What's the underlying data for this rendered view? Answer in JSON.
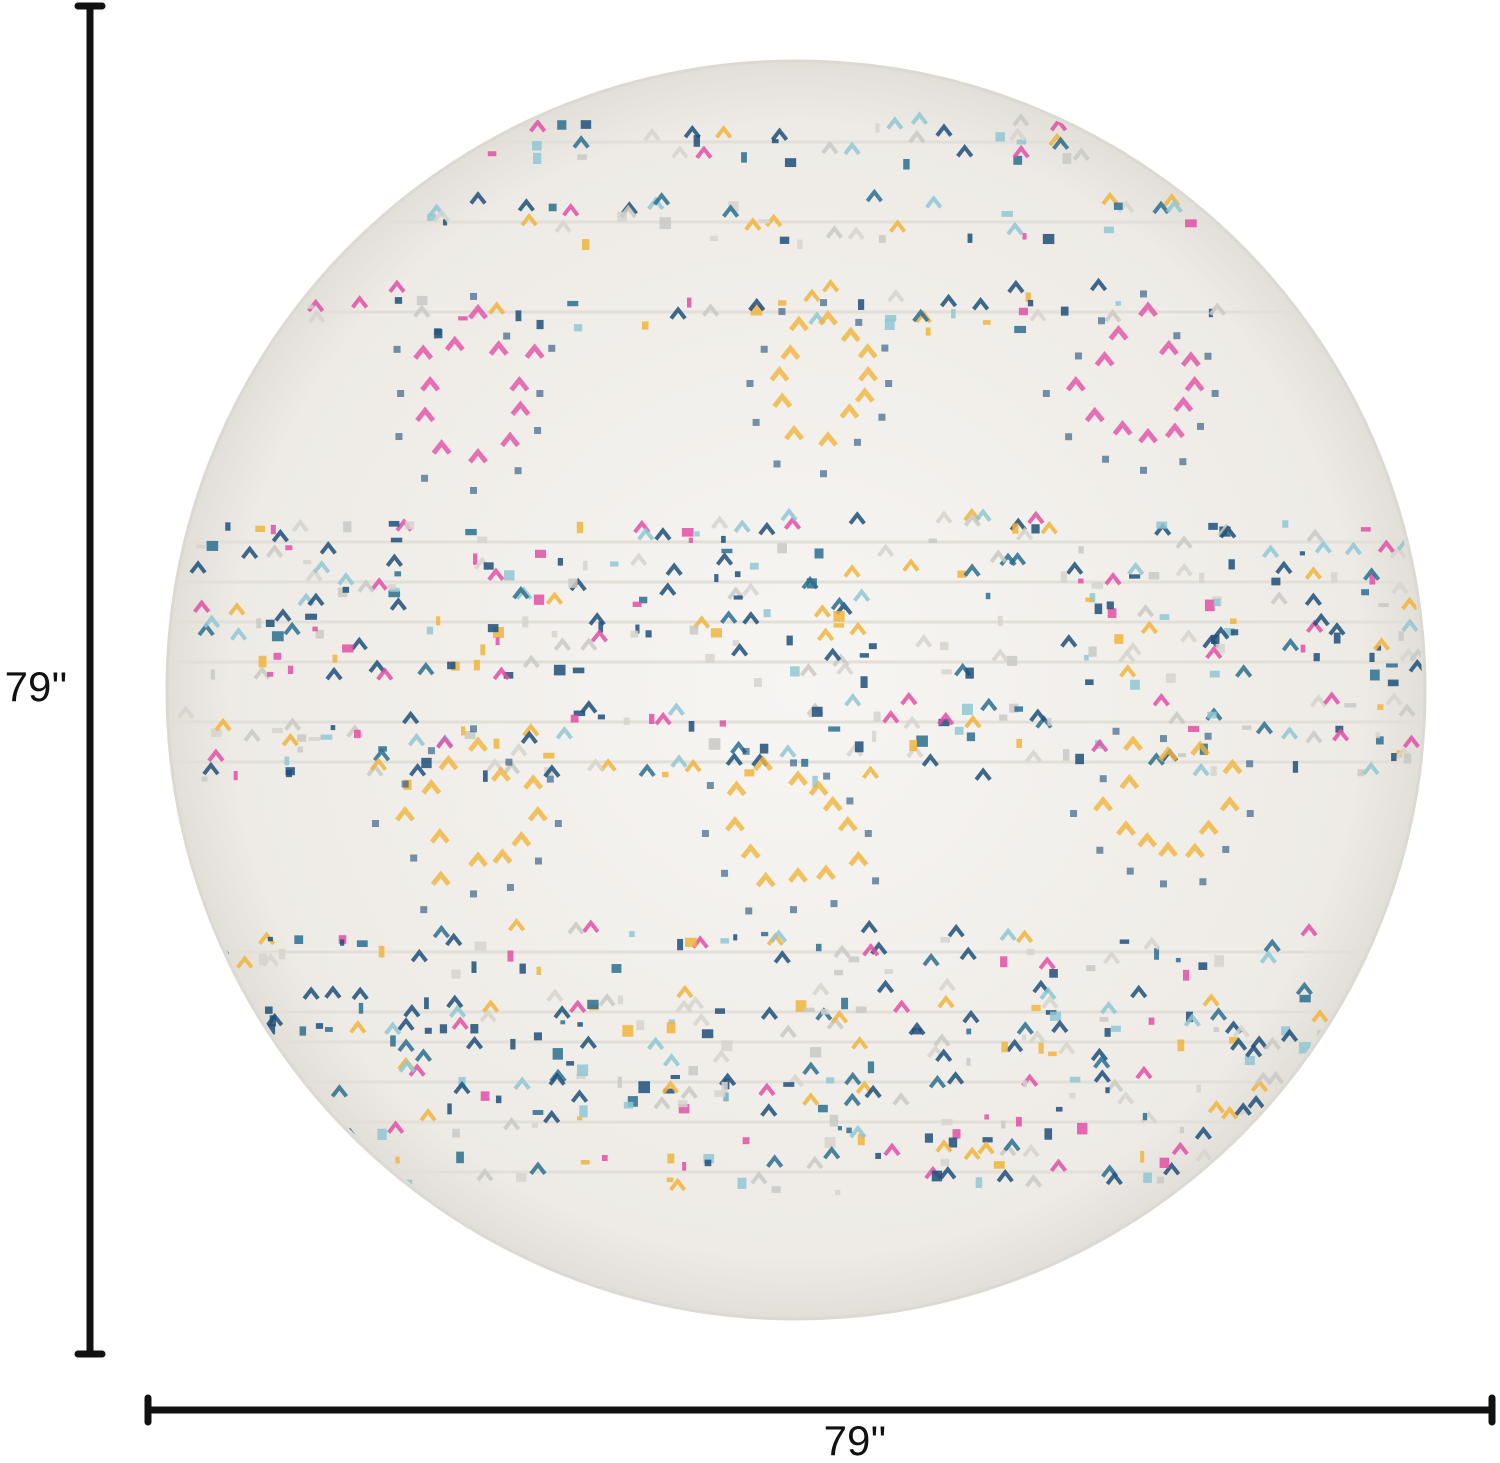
{
  "dimensions": {
    "height_label": "79''",
    "width_label": "79''"
  }
}
